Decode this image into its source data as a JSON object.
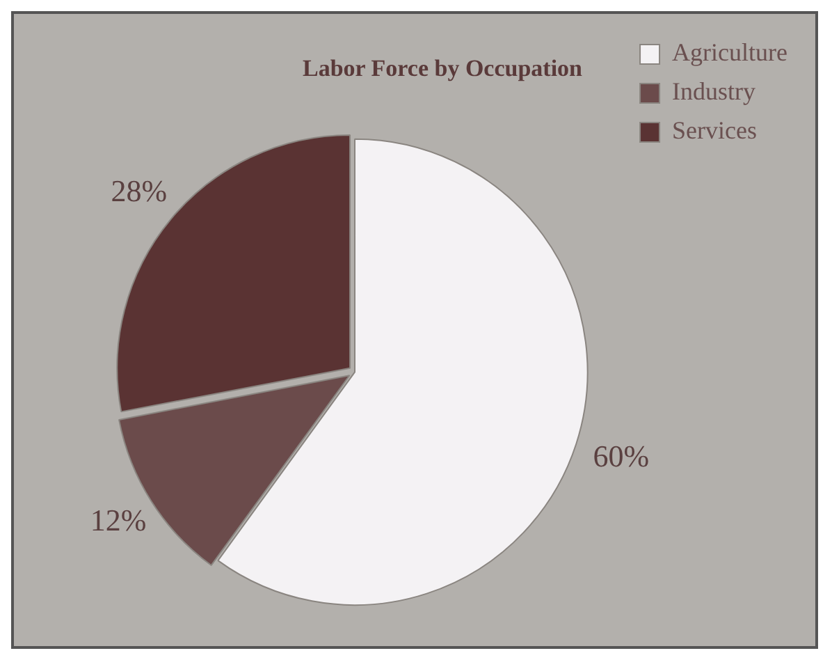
{
  "chart_data": {
    "type": "pie",
    "title": "Labor Force by Occupation",
    "categories": [
      "Agriculture",
      "Industry",
      "Services"
    ],
    "values": [
      60,
      12,
      28
    ],
    "value_labels": [
      "60%",
      "12%",
      "28%"
    ],
    "colors": [
      "#f4f2f4",
      "#6b4b4b",
      "#5a3333"
    ],
    "legend": "top right"
  }
}
